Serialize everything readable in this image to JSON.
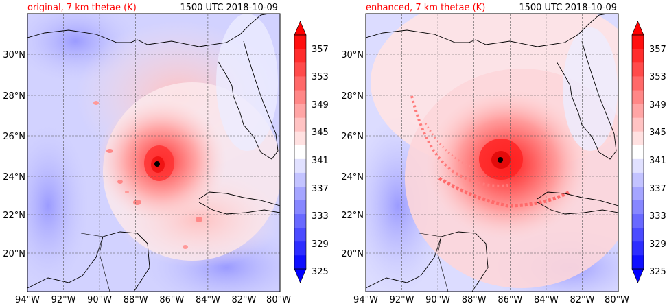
{
  "panels": [
    {
      "id": "original",
      "title_left": "original, 7 km thetae (K)",
      "title_right": "1500 UTC 2018-10-09",
      "lat_ticks": [
        "20°N",
        "22°N",
        "24°N",
        "26°N",
        "28°N",
        "30°N"
      ],
      "lon_ticks": [
        "94°W",
        "92°W",
        "90°W",
        "88°W",
        "86°W",
        "84°W",
        "82°W",
        "80°W"
      ],
      "colorbar_ticks": [
        "325",
        "329",
        "333",
        "337",
        "341",
        "345",
        "349",
        "353",
        "357"
      ],
      "storm_center": {
        "lon": -86.7,
        "lat": 24.6
      },
      "map_extent": {
        "lon": [
          -94,
          -80
        ],
        "lat": [
          18,
          32
        ]
      }
    },
    {
      "id": "enhanced",
      "title_left": "enhanced, 7 km thetae (K)",
      "title_right": "1500 UTC 2018-10-09",
      "lat_ticks": [
        "20°N",
        "22°N",
        "24°N",
        "26°N",
        "28°N",
        "30°N"
      ],
      "lon_ticks": [
        "94°W",
        "92°W",
        "90°W",
        "88°W",
        "86°W",
        "84°W",
        "82°W",
        "80°W"
      ],
      "colorbar_ticks": [
        "325",
        "329",
        "333",
        "337",
        "341",
        "345",
        "349",
        "353",
        "357"
      ],
      "storm_center": {
        "lon": -86.5,
        "lat": 24.8
      },
      "map_extent": {
        "lon": [
          -94,
          -80
        ],
        "lat": [
          18,
          32
        ]
      }
    }
  ],
  "colorbar_levels": [
    325,
    327,
    329,
    331,
    333,
    335,
    337,
    339,
    341,
    343,
    345,
    347,
    349,
    351,
    353,
    355,
    357,
    359
  ],
  "colors": {
    "title_left": "#ff0000",
    "cold_end": "#0000ff",
    "neutral": "#ffffff",
    "warm_end": "#ff0000"
  }
}
